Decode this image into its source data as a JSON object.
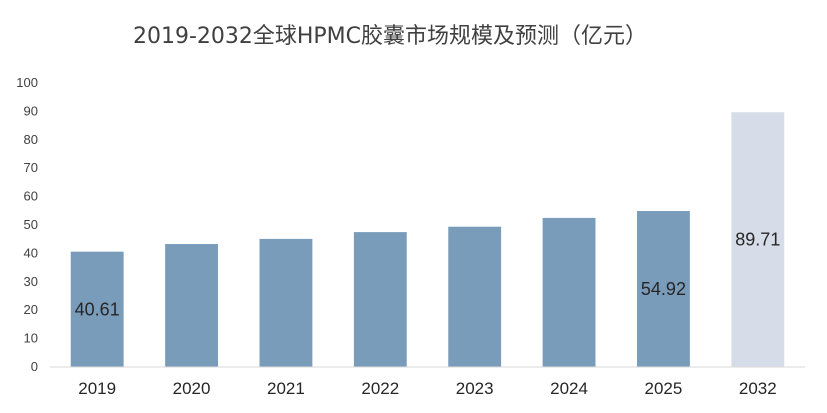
{
  "chart_data": {
    "type": "bar",
    "title": "2019-2032全球HPMC胶囊市场规模及预测（亿元）",
    "xlabel": "",
    "ylabel": "",
    "ylim": [
      0,
      100
    ],
    "yticks": [
      0,
      10,
      20,
      30,
      40,
      50,
      60,
      70,
      80,
      90,
      100
    ],
    "categories": [
      "2019",
      "2020",
      "2021",
      "2022",
      "2023",
      "2024",
      "2025",
      "2032"
    ],
    "values": [
      40.61,
      43.3,
      45.1,
      47.5,
      49.4,
      52.5,
      54.92,
      89.71
    ],
    "data_labels": [
      "40.61",
      "",
      "",
      "",
      "",
      "",
      "54.92",
      "89.71"
    ],
    "colors": [
      "#7a9cbb",
      "#7a9cbb",
      "#7a9cbb",
      "#7a9cbb",
      "#7a9cbb",
      "#7a9cbb",
      "#7a9cbb",
      "#d7dde8"
    ],
    "grid": false,
    "legend": "none"
  }
}
